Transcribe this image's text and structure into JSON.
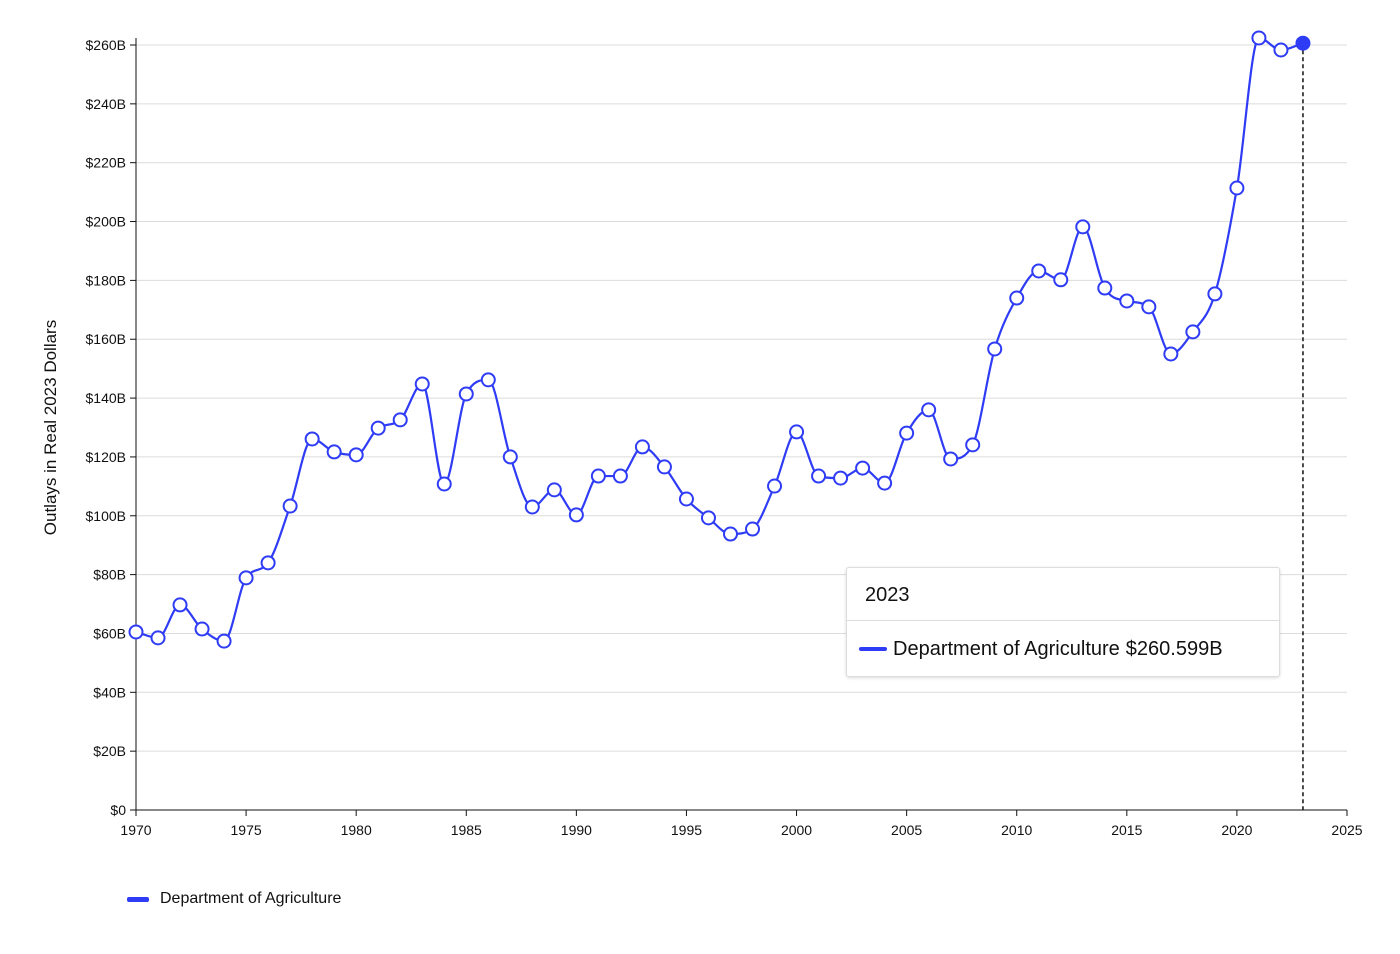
{
  "chart_data": {
    "type": "line",
    "title": "",
    "xlabel": "",
    "ylabel": "Outlays in Real 2023 Dollars",
    "xlim": [
      1970,
      2025
    ],
    "ylim": [
      0,
      260
    ],
    "x_ticks": [
      "1970",
      "1975",
      "1980",
      "1985",
      "1990",
      "1995",
      "2000",
      "2005",
      "2010",
      "2015",
      "2020",
      "2025"
    ],
    "y_ticks": [
      "$0",
      "$20B",
      "$40B",
      "$60B",
      "$80B",
      "$100B",
      "$120B",
      "$140B",
      "$160B",
      "$180B",
      "$200B",
      "$220B",
      "$240B",
      "$260B"
    ],
    "grid": "horizontal",
    "legend_position": "bottom-left",
    "series": [
      {
        "name": "Department of Agriculture",
        "color": "#2f3cf5",
        "x": [
          1970,
          1971,
          1972,
          1973,
          1974,
          1975,
          1976,
          1977,
          1978,
          1979,
          1980,
          1981,
          1982,
          1983,
          1984,
          1985,
          1986,
          1987,
          1988,
          1989,
          1990,
          1991,
          1992,
          1993,
          1994,
          1995,
          1996,
          1997,
          1998,
          1999,
          2000,
          2001,
          2002,
          2003,
          2004,
          2005,
          2006,
          2007,
          2008,
          2009,
          2010,
          2011,
          2012,
          2013,
          2014,
          2015,
          2016,
          2017,
          2018,
          2019,
          2020,
          2021,
          2022,
          2023
        ],
        "values": [
          60.5,
          58.5,
          69.7,
          61.5,
          57.4,
          78.9,
          84.0,
          103.3,
          126.1,
          121.7,
          120.7,
          129.8,
          132.6,
          144.8,
          110.8,
          141.4,
          146.2,
          120.0,
          103.0,
          108.8,
          100.3,
          113.5,
          113.5,
          123.4,
          116.6,
          105.7,
          99.3,
          93.8,
          95.5,
          110.1,
          128.5,
          113.5,
          112.8,
          116.2,
          111.1,
          128.1,
          136.0,
          119.3,
          124.1,
          156.7,
          174.0,
          183.2,
          180.2,
          198.2,
          177.4,
          173.0,
          171.0,
          155.0,
          162.5,
          175.4,
          211.4,
          262.4,
          258.3,
          260.599
        ]
      }
    ],
    "highlighted_x": 2023
  },
  "tooltip": {
    "title": "2023",
    "series_name": "Department of Agriculture",
    "value": "$260.599B"
  },
  "legend": {
    "items": [
      {
        "label": "Department of Agriculture"
      }
    ]
  }
}
